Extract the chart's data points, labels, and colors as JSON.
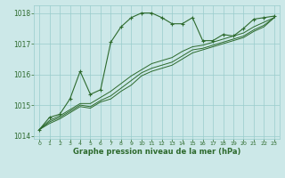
{
  "hours": [
    0,
    1,
    2,
    3,
    4,
    5,
    6,
    7,
    8,
    9,
    10,
    11,
    12,
    13,
    14,
    15,
    16,
    17,
    18,
    19,
    20,
    21,
    22,
    23
  ],
  "line1": [
    1014.2,
    1014.6,
    1014.7,
    1015.2,
    1016.1,
    1015.35,
    1015.5,
    1017.05,
    1017.55,
    1017.85,
    1018.0,
    1018.0,
    1017.85,
    1017.65,
    1017.65,
    1017.85,
    1017.1,
    1017.1,
    1017.3,
    1017.25,
    1017.5,
    1017.8,
    1017.85,
    1017.9
  ],
  "line2": [
    1014.2,
    1014.5,
    1014.65,
    1014.85,
    1015.05,
    1015.05,
    1015.25,
    1015.45,
    1015.7,
    1015.95,
    1016.15,
    1016.35,
    1016.45,
    1016.55,
    1016.75,
    1016.9,
    1016.95,
    1017.05,
    1017.15,
    1017.25,
    1017.35,
    1017.55,
    1017.7,
    1017.85
  ],
  "line3": [
    1014.2,
    1014.45,
    1014.6,
    1014.8,
    1015.0,
    1014.95,
    1015.15,
    1015.3,
    1015.55,
    1015.8,
    1016.05,
    1016.2,
    1016.3,
    1016.4,
    1016.6,
    1016.8,
    1016.85,
    1016.95,
    1017.05,
    1017.15,
    1017.25,
    1017.45,
    1017.6,
    1017.85
  ],
  "line4": [
    1014.2,
    1014.4,
    1014.55,
    1014.75,
    1014.95,
    1014.9,
    1015.1,
    1015.2,
    1015.45,
    1015.65,
    1015.95,
    1016.1,
    1016.2,
    1016.3,
    1016.5,
    1016.7,
    1016.8,
    1016.9,
    1017.0,
    1017.1,
    1017.2,
    1017.4,
    1017.55,
    1017.85
  ],
  "line_color": "#2d6a2d",
  "bg_color": "#cce8e8",
  "grid_color": "#99cccc",
  "xlabel": "Graphe pression niveau de la mer (hPa)",
  "ylim": [
    1013.9,
    1018.25
  ],
  "xlim": [
    -0.5,
    23.5
  ],
  "yticks": [
    1014,
    1015,
    1016,
    1017,
    1018
  ],
  "xticks": [
    0,
    1,
    2,
    3,
    4,
    5,
    6,
    7,
    8,
    9,
    10,
    11,
    12,
    13,
    14,
    15,
    16,
    17,
    18,
    19,
    20,
    21,
    22,
    23
  ]
}
